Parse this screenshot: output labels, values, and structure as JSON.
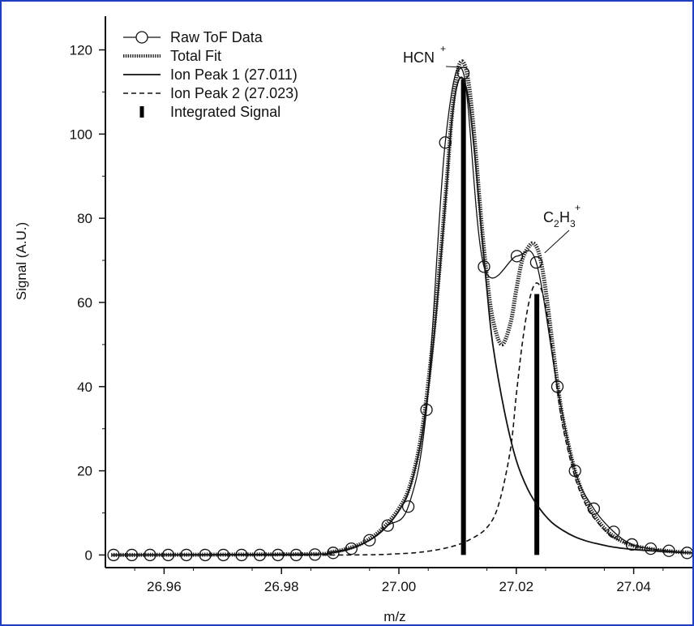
{
  "chart_data": {
    "type": "line",
    "title": "",
    "xlabel": "m/z",
    "ylabel": "Signal (A.U.)",
    "xlim": [
      26.95,
      27.05
    ],
    "ylim": [
      -3,
      128
    ],
    "x_ticks": [
      26.96,
      26.98,
      27.0,
      27.02,
      27.04
    ],
    "x_tick_labels": [
      "26.96",
      "26.98",
      "27.00",
      "27.02",
      "27.04"
    ],
    "y_ticks": [
      0,
      20,
      40,
      60,
      80,
      100,
      120
    ],
    "y_tick_labels": [
      "0",
      "20",
      "40",
      "60",
      "80",
      "100",
      "120"
    ],
    "grid": false,
    "legend_position": "top-left",
    "legend": [
      {
        "label": "Raw ToF Data",
        "style": "line-circle"
      },
      {
        "label": "Total Fit",
        "style": "dotted-thick"
      },
      {
        "label": "Ion Peak 1 (27.011)",
        "style": "solid"
      },
      {
        "label": "Ion Peak 2 (27.023)",
        "style": "dashed"
      },
      {
        "label": "Integrated Signal",
        "style": "bar"
      }
    ],
    "series": [
      {
        "name": "Raw ToF Data",
        "x": [
          26.9514,
          26.9545,
          26.9576,
          26.9607,
          26.9638,
          26.967,
          26.9701,
          26.9732,
          26.9763,
          26.9794,
          26.9825,
          26.9857,
          26.9888,
          26.9919,
          26.995,
          26.9981,
          27.0016,
          27.0047,
          27.0079,
          27.011,
          27.0145,
          27.0201,
          27.0234,
          27.027,
          27.03,
          27.0332,
          27.0366,
          27.0397,
          27.0429,
          27.046,
          27.0491
        ],
        "values": [
          0,
          0,
          0,
          0,
          0,
          0,
          0,
          0,
          0,
          0,
          0,
          0.1,
          0.5,
          1.5,
          3.5,
          7,
          11.5,
          34.5,
          98,
          114.5,
          68.5,
          71,
          69.5,
          40,
          20,
          11,
          5.5,
          2.5,
          1.5,
          1,
          0.5
        ]
      },
      {
        "name": "Total Fit",
        "x": [
          26.951,
          26.985,
          26.988,
          26.991,
          26.994,
          26.997,
          27.0,
          27.002,
          27.004,
          27.006,
          27.008,
          27.009,
          27.01,
          27.011,
          27.012,
          27.013,
          27.014,
          27.015,
          27.016,
          27.0175,
          27.019,
          27.02,
          27.021,
          27.022,
          27.023,
          27.024,
          27.025,
          27.026,
          27.027,
          27.028,
          27.03,
          27.032,
          27.034,
          27.036,
          27.038,
          27.04,
          27.043,
          27.046,
          27.05
        ],
        "values": [
          0,
          0.2,
          0.6,
          1.4,
          3,
          6,
          11,
          17,
          30,
          54,
          86,
          104,
          115,
          117,
          111,
          97,
          80,
          66,
          56,
          50,
          55,
          63,
          70,
          73,
          74,
          71,
          63,
          52,
          41,
          32,
          20,
          12.5,
          8,
          5,
          3.3,
          2.2,
          1.4,
          0.9,
          0.5
        ]
      },
      {
        "name": "Ion Peak 1 (27.011)",
        "x": [
          26.951,
          26.985,
          26.988,
          26.991,
          26.994,
          26.997,
          27.0,
          27.002,
          27.004,
          27.006,
          27.008,
          27.009,
          27.01,
          27.011,
          27.012,
          27.013,
          27.014,
          27.015,
          27.016,
          27.018,
          27.02,
          27.022,
          27.024,
          27.026,
          27.028,
          27.03,
          27.032,
          27.034,
          27.036,
          27.038,
          27.04,
          27.044,
          27.048,
          27.05
        ],
        "values": [
          0,
          0.2,
          0.6,
          1.3,
          2.8,
          5.5,
          10.5,
          16.5,
          29,
          52,
          85,
          103,
          112,
          113,
          107,
          94,
          78,
          63,
          50,
          34,
          22.5,
          15.5,
          11,
          7.8,
          5.8,
          4.3,
          3.3,
          2.6,
          2,
          1.6,
          1.3,
          0.9,
          0.6,
          0.5
        ]
      },
      {
        "name": "Ion Peak 2 (27.023)",
        "x": [
          26.951,
          26.99,
          27.0,
          27.005,
          27.009,
          27.012,
          27.015,
          27.017,
          27.019,
          27.02,
          27.021,
          27.022,
          27.023,
          27.024,
          27.025,
          27.026,
          27.027,
          27.028,
          27.03,
          27.032,
          27.034,
          27.036,
          27.038,
          27.04,
          27.043,
          27.046,
          27.05
        ],
        "values": [
          0,
          0,
          0.3,
          0.9,
          2,
          3.6,
          6.5,
          12,
          25,
          38,
          50,
          59,
          64,
          64,
          59,
          50,
          39,
          30,
          18.5,
          11.5,
          7.5,
          4.8,
          3.2,
          2.2,
          1.4,
          0.9,
          0.5
        ]
      },
      {
        "name": "Integrated Signal",
        "x": [
          27.011,
          27.0235
        ],
        "values": [
          113,
          62
        ]
      }
    ],
    "annotations": [
      {
        "text": "HCN",
        "superscript": "+",
        "x": 27.011,
        "y": 117
      },
      {
        "text": "C",
        "sub1": "2",
        "text2": "H",
        "sub2": "3",
        "superscript": "+",
        "x": 27.024,
        "y": 71
      }
    ]
  }
}
